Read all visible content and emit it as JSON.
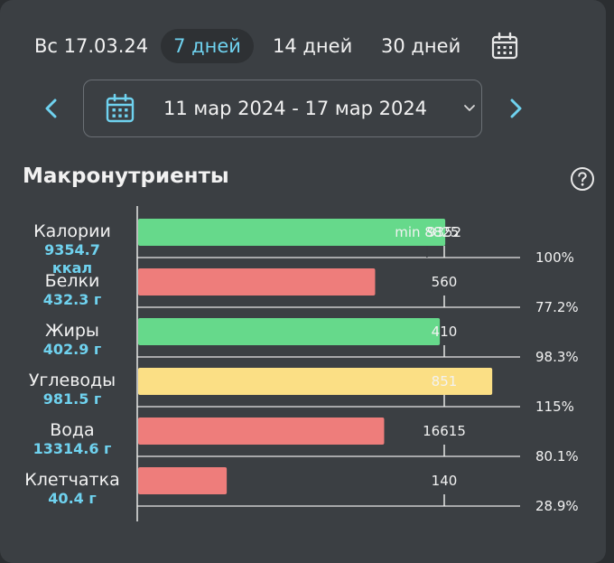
{
  "header": {
    "date_label": "Вс 17.03.24",
    "tabs": [
      {
        "label": "7 дней",
        "active": true
      },
      {
        "label": "14 дней",
        "active": false
      },
      {
        "label": "30 дней",
        "active": false
      }
    ],
    "calendar_icon": "calendar-icon"
  },
  "range": {
    "text": "11 мар 2024 - 17 мар 2024",
    "prev_icon": "chevron-left-icon",
    "next_icon": "chevron-right-icon",
    "dropdown_icon": "chevron-down-icon"
  },
  "section": {
    "title": "Макронутриенты",
    "help_icon": "help-icon"
  },
  "colors": {
    "accent": "#6fd2ef",
    "green": "#66d98b",
    "red": "#ee7d7b",
    "yellow": "#fbdf85"
  },
  "chart_data": {
    "type": "bar",
    "rows": [
      {
        "name": "Калории",
        "value_label": "9354.7",
        "unit_label": "ккал",
        "actual": 9354.7,
        "target": 9352,
        "target_label": "9352",
        "min": 8825,
        "min_label": "min 8825",
        "percent_label": "100%",
        "color": "green"
      },
      {
        "name": "Белки",
        "value_label": "432.3 г",
        "actual": 432.3,
        "target": 560,
        "target_label": "560",
        "percent_label": "77.2%",
        "color": "red"
      },
      {
        "name": "Жиры",
        "value_label": "402.9 г",
        "actual": 402.9,
        "target": 410,
        "target_label": "410",
        "percent_label": "98.3%",
        "color": "green"
      },
      {
        "name": "Углеводы",
        "value_label": "981.5 г",
        "actual": 981.5,
        "target": 851,
        "target_label": "851",
        "percent_label": "115%",
        "color": "yellow"
      },
      {
        "name": "Вода",
        "value_label": "13314.6 г",
        "actual": 13314.6,
        "target": 16615,
        "target_label": "16615",
        "percent_label": "80.1%",
        "color": "red"
      },
      {
        "name": "Клетчатка",
        "value_label": "40.4 г",
        "actual": 40.4,
        "target": 140,
        "target_label": "140",
        "percent_label": "28.9%",
        "color": "red"
      }
    ]
  }
}
